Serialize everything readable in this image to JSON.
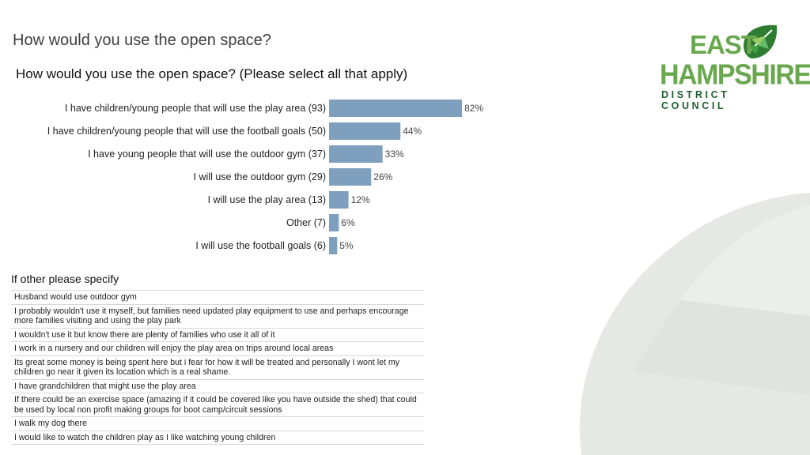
{
  "slide_title": "How would you use the open space?",
  "logo": {
    "line1": "EAST",
    "line2": "HAMPSHIRE",
    "line3": "DISTRICT COUNCIL",
    "colors": {
      "green": "#6aa84f",
      "dark_green": "#1f5f2f"
    }
  },
  "chart_data": {
    "type": "bar",
    "orientation": "horizontal",
    "title": "How would you use the open space? (Please select all that apply)",
    "categories": [
      "I have children/young people that will use the play area (93)",
      "I have children/young people that will use the football goals (50)",
      "I have young people that will use the outdoor gym (37)",
      "I will use the outdoor gym (29)",
      "I will use the play area (13)",
      "Other (7)",
      "I will use the football goals (6)"
    ],
    "values": [
      82,
      44,
      33,
      26,
      12,
      6,
      5
    ],
    "value_labels": [
      "82%",
      "44%",
      "33%",
      "26%",
      "12%",
      "6%",
      "5%"
    ],
    "unit": "%",
    "xlim": [
      0,
      100
    ],
    "bar_color": "#7f9fbf",
    "grid": false,
    "legend": "none"
  },
  "other": {
    "heading": "If other please specify",
    "responses": [
      "Husband would use outdoor gym",
      "I probably wouldn't use it myself, but families need updated play equipment to use and perhaps encourage more families visiting and using the play park",
      "I wouldn't use it but know there are plenty of families who use it all of it",
      "I work in a nursery and our children will enjoy the play area on trips around local areas",
      "Its great some money is being spent here but i fear for how it will be treated and personally I wont let my children go near it given its location which is a real shame.",
      "I have grandchildren that might use the play area",
      "If there could be an exercise space (amazing if it could be covered like you have outside the shed) that could be used by local non profit making groups for boot camp/circuit sessions",
      "I walk my dog there",
      "I would like to watch the children play as I like watching young children"
    ]
  }
}
